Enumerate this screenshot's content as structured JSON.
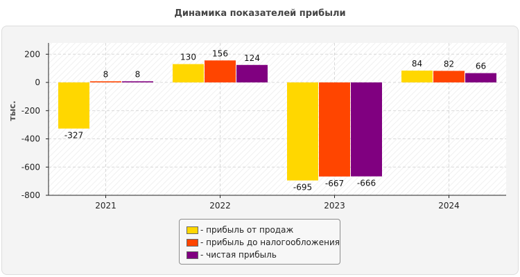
{
  "chart_data": {
    "type": "bar",
    "title": "Динамика показателей прибыли",
    "ylabel": "тыс.",
    "xlabel": "",
    "categories": [
      "2021",
      "2022",
      "2023",
      "2024"
    ],
    "ylim": [
      -800,
      280
    ],
    "yticks": [
      200,
      0,
      -200,
      -400,
      -600,
      -800
    ],
    "grid": true,
    "legend_position": "bottom",
    "series": [
      {
        "name": "- прибыль от продаж",
        "color": "#FFD700",
        "values": [
          -327,
          130,
          -695,
          84
        ]
      },
      {
        "name": "- прибыль до налогообложения",
        "color": "#FF4500",
        "values": [
          8,
          156,
          -667,
          82
        ]
      },
      {
        "name": "- чистая прибыль",
        "color": "#800080",
        "values": [
          8,
          124,
          -666,
          66
        ]
      }
    ]
  }
}
